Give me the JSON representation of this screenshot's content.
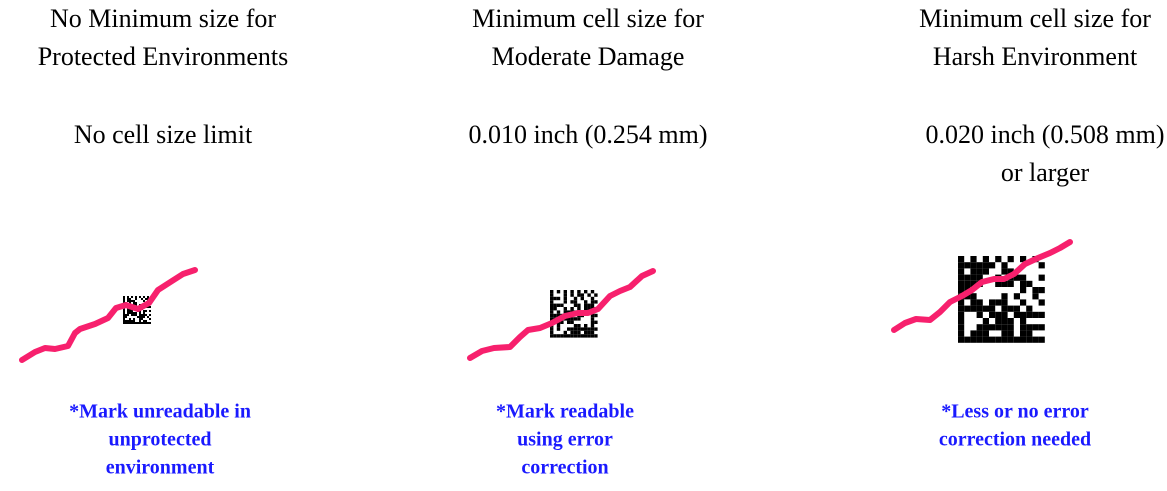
{
  "columns": [
    {
      "title": [
        "No Minimum size for",
        "Protected Environments"
      ],
      "size": [
        "No cell size limit"
      ],
      "note": [
        "*Mark unreadable in",
        "unprotected",
        "environment"
      ]
    },
    {
      "title": [
        "Minimum cell size for",
        "Moderate Damage"
      ],
      "size": [
        "0.010 inch (0.254 mm)"
      ],
      "note": [
        "*Mark readable",
        "using error",
        "correction"
      ]
    },
    {
      "title": [
        "Minimum cell size for",
        "Harsh Environment"
      ],
      "size": [
        "0.020 inch (0.508 mm)",
        "or larger"
      ],
      "note": [
        "*Less or no error",
        "correction needed"
      ]
    }
  ]
}
